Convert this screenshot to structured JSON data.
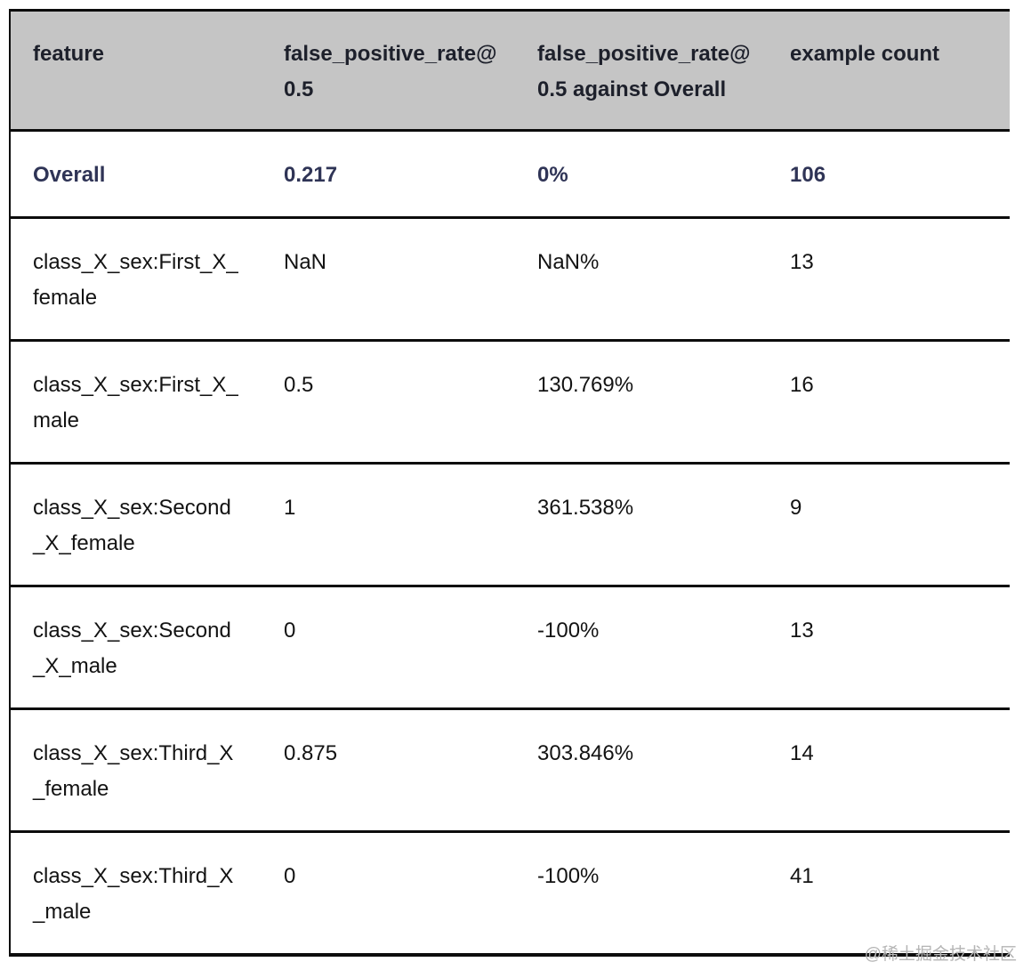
{
  "chart_data": {
    "type": "table",
    "columns": [
      "feature",
      "false_positive_rate@0.5",
      "false_positive_rate@0.5 against Overall",
      "example count"
    ],
    "rows": [
      [
        "Overall",
        "0.217",
        "0%",
        "106"
      ],
      [
        "class_X_sex:First_X_female",
        "NaN",
        "NaN%",
        "13"
      ],
      [
        "class_X_sex:First_X_male",
        "0.5",
        "130.769%",
        "16"
      ],
      [
        "class_X_sex:Second_X_female",
        "1",
        "361.538%",
        "9"
      ],
      [
        "class_X_sex:Second_X_male",
        "0",
        "-100%",
        "13"
      ],
      [
        "class_X_sex:Third_X_female",
        "0.875",
        "303.846%",
        "14"
      ],
      [
        "class_X_sex:Third_X_male",
        "0",
        "-100%",
        "41"
      ]
    ]
  },
  "table": {
    "headers": [
      "feature",
      "false_positive_rate@\n0.5",
      "false_positive_rate@\n0.5 against Overall",
      "example count"
    ],
    "rows": [
      {
        "feature": "Overall",
        "fpr": "0.217",
        "fpr_vs_overall": "0%",
        "example_count": "106"
      },
      {
        "feature": "class_X_sex:First_X_\nfemale",
        "fpr": "NaN",
        "fpr_vs_overall": "NaN%",
        "example_count": "13"
      },
      {
        "feature": "class_X_sex:First_X_\nmale",
        "fpr": "0.5",
        "fpr_vs_overall": "130.769%",
        "example_count": "16"
      },
      {
        "feature": "class_X_sex:Second\n_X_female",
        "fpr": "1",
        "fpr_vs_overall": "361.538%",
        "example_count": "9"
      },
      {
        "feature": "class_X_sex:Second\n_X_male",
        "fpr": "0",
        "fpr_vs_overall": "-100%",
        "example_count": "13"
      },
      {
        "feature": "class_X_sex:Third_X\n_female",
        "fpr": "0.875",
        "fpr_vs_overall": "303.846%",
        "example_count": "14"
      },
      {
        "feature": "class_X_sex:Third_X\n_male",
        "fpr": "0",
        "fpr_vs_overall": "-100%",
        "example_count": "41"
      }
    ]
  },
  "watermark": {
    "text": "@稀土掘金技术社区"
  },
  "colors": {
    "header_bg": "#c5c5c5",
    "header_text": "#1d202b",
    "overall_row_text": "#2f3456",
    "body_text": "#131313",
    "border": "#0c0c0c",
    "watermark": "#b4b4b4"
  }
}
